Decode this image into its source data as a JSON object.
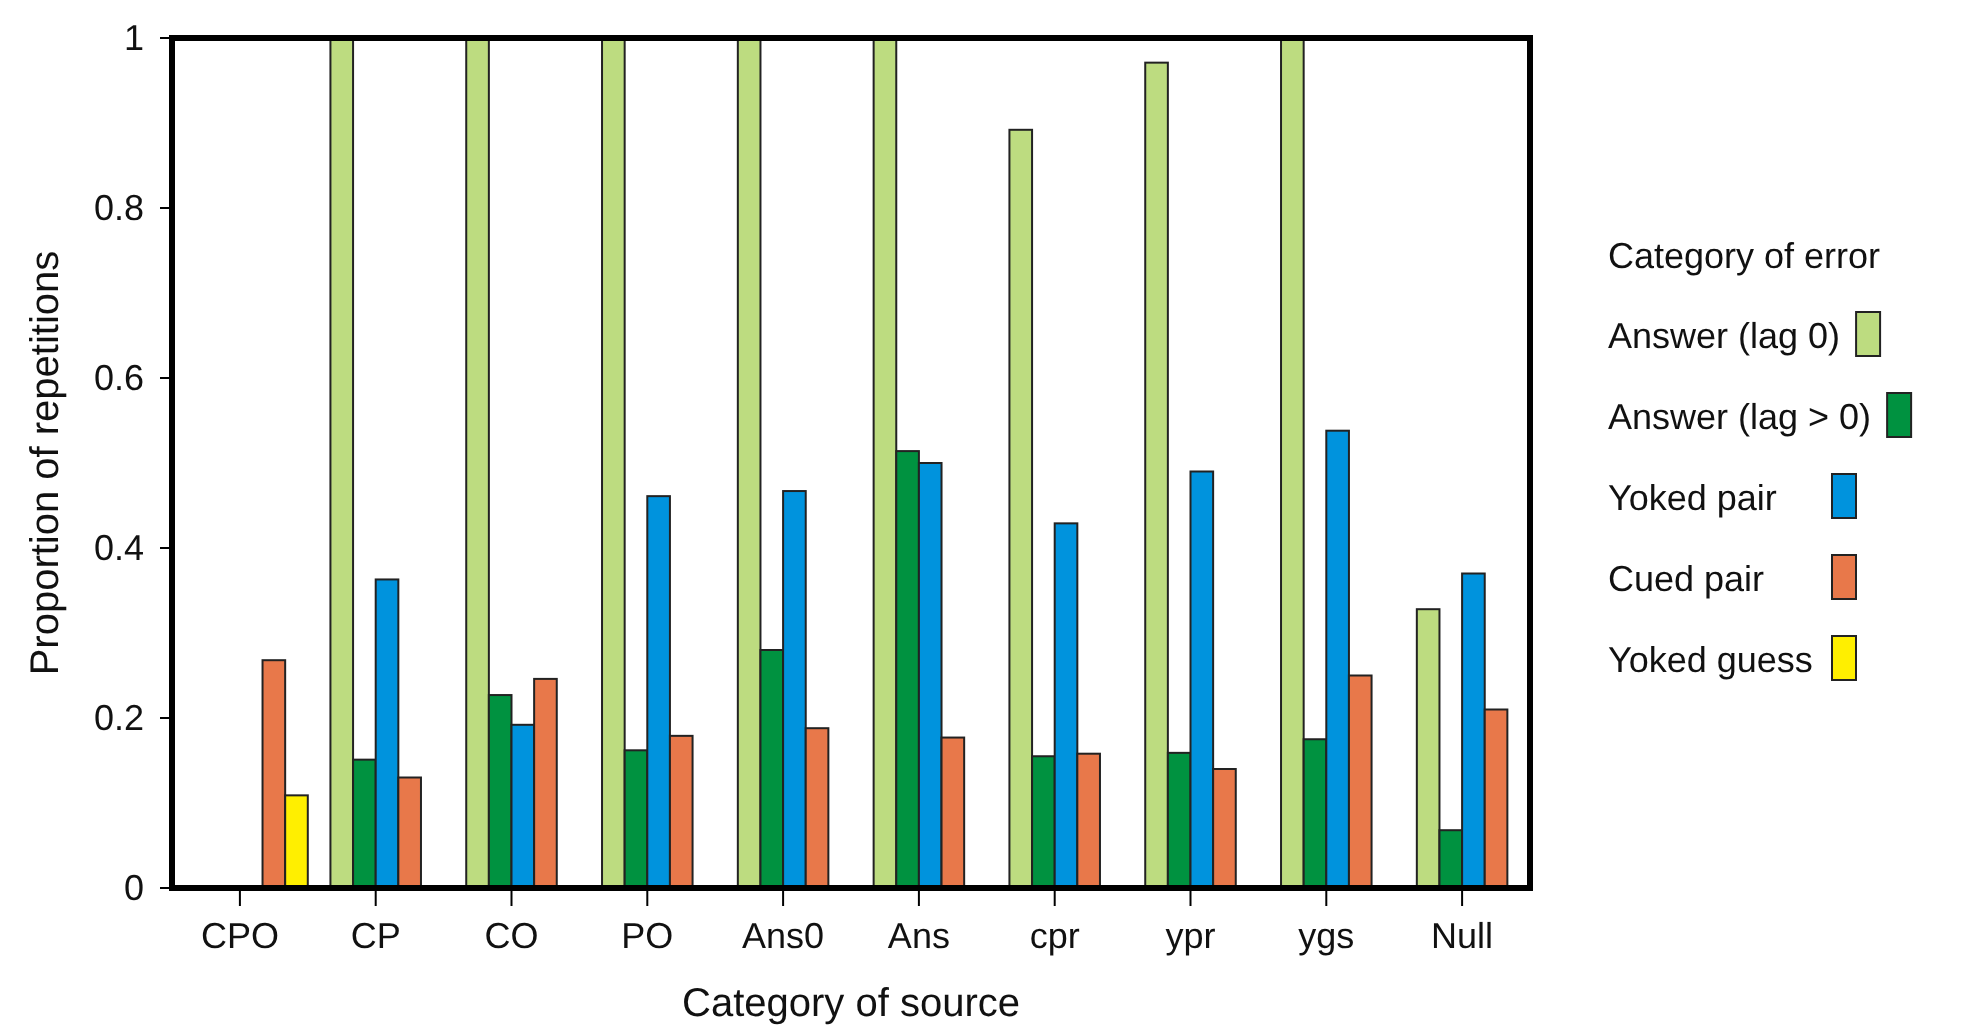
{
  "chart_data": {
    "type": "bar",
    "xlabel": "Category of source",
    "ylabel": "Proportion of repetitions",
    "legend_title": "Category of error",
    "legend": "right",
    "categories": [
      "CPO",
      "CP",
      "CO",
      "PO",
      "Ans0",
      "Ans",
      "cpr",
      "ypr",
      "ygs",
      "Null"
    ],
    "ylim": [
      0,
      1
    ],
    "yticks": [
      0,
      0.2,
      0.4,
      0.6,
      0.8,
      1
    ],
    "grid": false,
    "series": [
      {
        "name": "Answer (lag 0)",
        "color": "#bddc80",
        "values": [
          null,
          1,
          1,
          1,
          1,
          1,
          0.892,
          0.971,
          1,
          0.328
        ]
      },
      {
        "name": "Answer (lag > 0)",
        "color": "#009240",
        "values": [
          null,
          0.151,
          0.227,
          0.162,
          0.28,
          0.514,
          0.155,
          0.159,
          0.175,
          0.068
        ]
      },
      {
        "name": "Yoked pair",
        "color": "#0093dd",
        "values": [
          null,
          0.363,
          0.192,
          0.461,
          0.467,
          0.5,
          0.429,
          0.49,
          0.538,
          0.37
        ]
      },
      {
        "name": "Cued pair",
        "color": "#e8784a",
        "values": [
          0.268,
          0.13,
          0.246,
          0.179,
          0.188,
          0.177,
          0.158,
          0.14,
          0.25,
          0.21
        ]
      },
      {
        "name": "Yoked guess",
        "color": "#ffef00",
        "values": [
          0.109,
          null,
          null,
          null,
          null,
          null,
          null,
          null,
          null,
          null
        ]
      }
    ]
  }
}
